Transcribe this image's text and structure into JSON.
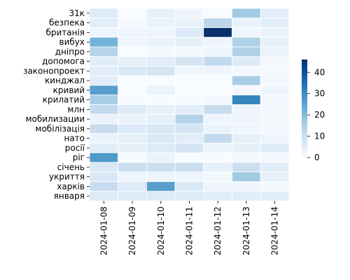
{
  "chart_data": {
    "type": "heatmap",
    "title": "",
    "xlabel": "",
    "ylabel": "",
    "x": [
      "2024-01-08",
      "2024-01-09",
      "2024-01-10",
      "2024-01-11",
      "2024-01-12",
      "2024-01-13",
      "2024-01-14"
    ],
    "y": [
      "31к",
      "безпека",
      "британія",
      "вибух",
      "дніпро",
      "допомога",
      "законопроект",
      "кинджал",
      "кривий",
      "крилатий",
      "млн",
      "мобилизации",
      "мобілізація",
      "нато",
      "росії",
      "ріг",
      "січень",
      "укриття",
      "харків",
      "января"
    ],
    "values": [
      [
        6,
        0,
        4,
        2,
        0,
        17,
        5
      ],
      [
        5,
        1,
        3,
        3,
        13,
        3,
        5
      ],
      [
        2,
        2,
        2,
        6,
        46,
        2,
        3
      ],
      [
        22,
        2,
        3,
        4,
        2,
        15,
        4
      ],
      [
        14,
        0,
        1,
        1,
        2,
        15,
        3
      ],
      [
        5,
        4,
        5,
        8,
        12,
        6,
        1
      ],
      [
        5,
        7,
        8,
        2,
        2,
        1,
        1
      ],
      [
        5,
        0,
        0,
        0,
        0,
        16,
        1
      ],
      [
        26,
        0,
        3,
        0,
        0,
        1,
        2
      ],
      [
        16,
        0,
        0,
        0,
        1,
        31,
        1
      ],
      [
        12,
        6,
        4,
        5,
        11,
        2,
        1
      ],
      [
        3,
        3,
        4,
        14,
        2,
        2,
        1
      ],
      [
        11,
        6,
        7,
        8,
        3,
        2,
        1
      ],
      [
        3,
        4,
        7,
        5,
        12,
        4,
        2
      ],
      [
        5,
        4,
        6,
        8,
        3,
        4,
        6
      ],
      [
        27,
        0,
        3,
        0,
        0,
        1,
        1
      ],
      [
        7,
        10,
        10,
        10,
        4,
        10,
        5
      ],
      [
        7,
        2,
        2,
        2,
        1,
        17,
        4
      ],
      [
        11,
        6,
        26,
        7,
        2,
        2,
        1
      ],
      [
        6,
        6,
        6,
        6,
        5,
        5,
        5
      ]
    ],
    "vmin": 0,
    "vmax": 46,
    "colormap": "Blues",
    "colorbar_ticks": [
      0,
      10,
      20,
      30,
      40
    ],
    "grid": true,
    "grid_color": "#ffffff",
    "legend": "colorbar-right"
  }
}
